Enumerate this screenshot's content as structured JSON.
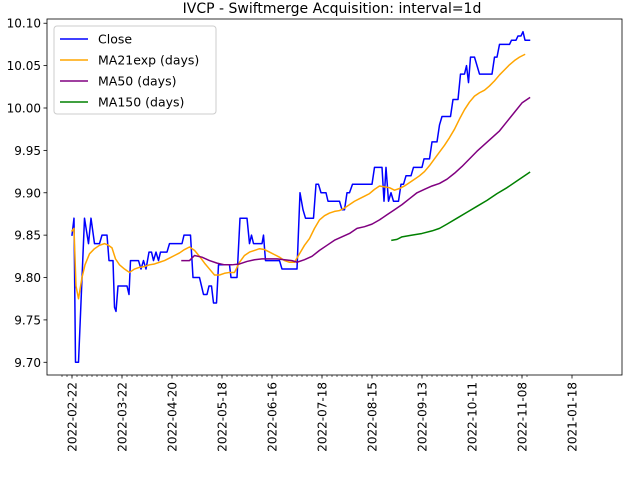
{
  "chart_data": {
    "type": "line",
    "title": "IVCP - Swiftmerge Acquisition: interval=1d",
    "xlabel": "",
    "ylabel": "",
    "ylim": [
      9.685,
      10.105
    ],
    "xlim": [
      -3,
      112
    ],
    "grid": false,
    "legend_position": "top-left",
    "y_ticks": [
      9.7,
      9.75,
      9.8,
      9.85,
      9.9,
      9.95,
      10.0,
      10.05,
      10.1
    ],
    "y_tick_labels": [
      "9.70",
      "9.75",
      "9.80",
      "9.85",
      "9.90",
      "9.95",
      "10.00",
      "10.05",
      "10.10"
    ],
    "x_ticks": [
      {
        "label": "2022-02-22",
        "index": 2
      },
      {
        "label": "2022-03-22",
        "index": 12
      },
      {
        "label": "2022-04-20",
        "index": 22
      },
      {
        "label": "2022-05-18",
        "index": 32
      },
      {
        "label": "2022-06-16",
        "index": 42
      },
      {
        "label": "2022-07-18",
        "index": 52
      },
      {
        "label": "2022-08-15",
        "index": 62
      },
      {
        "label": "2022-09-13",
        "index": 72
      },
      {
        "label": "2022-10-11",
        "index": 82
      },
      {
        "label": "2022-11-08",
        "index": 92
      },
      {
        "label": "2021-01-18",
        "index": 102
      }
    ],
    "series": [
      {
        "name": "Close",
        "color": "#0000ff",
        "points": [
          [
            2,
            9.85
          ],
          [
            2.4,
            9.87
          ],
          [
            2.7,
            9.7
          ],
          [
            3.3,
            9.7
          ],
          [
            4.5,
            9.87
          ],
          [
            5.3,
            9.84
          ],
          [
            5.8,
            9.87
          ],
          [
            6.5,
            9.84
          ],
          [
            7.5,
            9.84
          ],
          [
            8,
            9.85
          ],
          [
            9,
            9.85
          ],
          [
            9.4,
            9.82
          ],
          [
            10.2,
            9.82
          ],
          [
            10.5,
            9.765
          ],
          [
            10.8,
            9.76
          ],
          [
            11.2,
            9.79
          ],
          [
            13,
            9.79
          ],
          [
            13.4,
            9.78
          ],
          [
            13.7,
            9.82
          ],
          [
            15.3,
            9.82
          ],
          [
            15.8,
            9.81
          ],
          [
            16.3,
            9.82
          ],
          [
            16.8,
            9.81
          ],
          [
            17.4,
            9.83
          ],
          [
            17.9,
            9.83
          ],
          [
            18.3,
            9.82
          ],
          [
            18.8,
            9.83
          ],
          [
            19.3,
            9.82
          ],
          [
            19.7,
            9.83
          ],
          [
            21,
            9.83
          ],
          [
            21.5,
            9.84
          ],
          [
            24,
            9.84
          ],
          [
            24.4,
            9.85
          ],
          [
            25.7,
            9.85
          ],
          [
            26.2,
            9.8
          ],
          [
            27.5,
            9.8
          ],
          [
            28.3,
            9.78
          ],
          [
            29,
            9.78
          ],
          [
            29.4,
            9.79
          ],
          [
            29.9,
            9.79
          ],
          [
            30.3,
            9.77
          ],
          [
            30.9,
            9.77
          ],
          [
            31.3,
            9.815
          ],
          [
            33.5,
            9.815
          ],
          [
            33.8,
            9.8
          ],
          [
            35,
            9.8
          ],
          [
            35.6,
            9.87
          ],
          [
            37,
            9.87
          ],
          [
            37.5,
            9.84
          ],
          [
            37.9,
            9.85
          ],
          [
            38.3,
            9.84
          ],
          [
            40,
            9.84
          ],
          [
            40.3,
            9.85
          ],
          [
            40.7,
            9.82
          ],
          [
            43.5,
            9.82
          ],
          [
            44,
            9.81
          ],
          [
            47,
            9.81
          ],
          [
            47.6,
            9.9
          ],
          [
            48.2,
            9.88
          ],
          [
            48.7,
            9.87
          ],
          [
            50.3,
            9.87
          ],
          [
            50.8,
            9.91
          ],
          [
            51.3,
            9.91
          ],
          [
            51.8,
            9.9
          ],
          [
            52.8,
            9.9
          ],
          [
            53.2,
            9.89
          ],
          [
            55.5,
            9.89
          ],
          [
            56,
            9.88
          ],
          [
            56.5,
            9.88
          ],
          [
            57,
            9.9
          ],
          [
            57.5,
            9.9
          ],
          [
            58.1,
            9.91
          ],
          [
            62,
            9.91
          ],
          [
            62.5,
            9.93
          ],
          [
            64,
            9.93
          ],
          [
            64.4,
            9.89
          ],
          [
            64.8,
            9.93
          ],
          [
            65.3,
            9.89
          ],
          [
            65.8,
            9.9
          ],
          [
            66.3,
            9.89
          ],
          [
            67.3,
            9.89
          ],
          [
            67.8,
            9.91
          ],
          [
            68.3,
            9.91
          ],
          [
            68.8,
            9.92
          ],
          [
            69.8,
            9.92
          ],
          [
            70.3,
            9.93
          ],
          [
            72,
            9.93
          ],
          [
            72.4,
            9.94
          ],
          [
            73.5,
            9.94
          ],
          [
            74,
            9.96
          ],
          [
            75,
            9.96
          ],
          [
            75.5,
            9.98
          ],
          [
            76,
            9.99
          ],
          [
            77.7,
            9.99
          ],
          [
            78.2,
            10.01
          ],
          [
            79.2,
            10.01
          ],
          [
            79.7,
            10.04
          ],
          [
            80.5,
            10.04
          ],
          [
            80.9,
            10.05
          ],
          [
            81.3,
            10.03
          ],
          [
            81.7,
            10.06
          ],
          [
            82.5,
            10.06
          ],
          [
            83.5,
            10.04
          ],
          [
            86,
            10.04
          ],
          [
            86.5,
            10.06
          ],
          [
            87,
            10.06
          ],
          [
            87.5,
            10.075
          ],
          [
            89.5,
            10.075
          ],
          [
            89.9,
            10.08
          ],
          [
            90.8,
            10.08
          ],
          [
            91.2,
            10.085
          ],
          [
            91.8,
            10.085
          ],
          [
            92.2,
            10.09
          ],
          [
            92.6,
            10.08
          ],
          [
            93.5,
            10.08
          ]
        ]
      },
      {
        "name": "MA21exp (days)",
        "color": "#ffa500",
        "points": [
          [
            2,
            9.855
          ],
          [
            2.4,
            9.858
          ],
          [
            2.8,
            9.79
          ],
          [
            3.3,
            9.775
          ],
          [
            4,
            9.8
          ],
          [
            4.6,
            9.815
          ],
          [
            5.5,
            9.828
          ],
          [
            6.5,
            9.834
          ],
          [
            7.5,
            9.838
          ],
          [
            8.5,
            9.84
          ],
          [
            9.3,
            9.838
          ],
          [
            10,
            9.835
          ],
          [
            10.7,
            9.822
          ],
          [
            11.5,
            9.815
          ],
          [
            12.5,
            9.81
          ],
          [
            13.5,
            9.806
          ],
          [
            14.5,
            9.81
          ],
          [
            15.5,
            9.812
          ],
          [
            16.5,
            9.813
          ],
          [
            17.5,
            9.815
          ],
          [
            18.5,
            9.816
          ],
          [
            19.5,
            9.818
          ],
          [
            20.5,
            9.82
          ],
          [
            21.5,
            9.823
          ],
          [
            22.5,
            9.826
          ],
          [
            23.5,
            9.829
          ],
          [
            24.5,
            9.833
          ],
          [
            25.5,
            9.836
          ],
          [
            26.5,
            9.832
          ],
          [
            27.5,
            9.825
          ],
          [
            28.5,
            9.817
          ],
          [
            29.5,
            9.81
          ],
          [
            30.5,
            9.803
          ],
          [
            31.5,
            9.803
          ],
          [
            32.5,
            9.805
          ],
          [
            33.5,
            9.806
          ],
          [
            34.5,
            9.806
          ],
          [
            35.5,
            9.818
          ],
          [
            36.5,
            9.826
          ],
          [
            37.5,
            9.83
          ],
          [
            38.5,
            9.832
          ],
          [
            39.5,
            9.834
          ],
          [
            40.5,
            9.833
          ],
          [
            41.5,
            9.83
          ],
          [
            42.5,
            9.827
          ],
          [
            43.5,
            9.824
          ],
          [
            44.5,
            9.82
          ],
          [
            45.5,
            9.818
          ],
          [
            46.5,
            9.818
          ],
          [
            47.5,
            9.828
          ],
          [
            48.5,
            9.838
          ],
          [
            49.5,
            9.846
          ],
          [
            50.5,
            9.858
          ],
          [
            51.5,
            9.868
          ],
          [
            52.5,
            9.873
          ],
          [
            53.5,
            9.876
          ],
          [
            54.5,
            9.878
          ],
          [
            55.5,
            9.879
          ],
          [
            56.5,
            9.882
          ],
          [
            57.5,
            9.886
          ],
          [
            58.5,
            9.89
          ],
          [
            59.5,
            9.893
          ],
          [
            60.5,
            9.896
          ],
          [
            61.5,
            9.899
          ],
          [
            62.5,
            9.904
          ],
          [
            63.5,
            9.908
          ],
          [
            64.5,
            9.907
          ],
          [
            65.5,
            9.906
          ],
          [
            66.5,
            9.903
          ],
          [
            67.5,
            9.905
          ],
          [
            68.5,
            9.908
          ],
          [
            69.5,
            9.912
          ],
          [
            70.5,
            9.916
          ],
          [
            71.5,
            9.92
          ],
          [
            72.5,
            9.925
          ],
          [
            73.5,
            9.932
          ],
          [
            74.5,
            9.94
          ],
          [
            75.5,
            9.948
          ],
          [
            76.5,
            9.956
          ],
          [
            77.5,
            9.965
          ],
          [
            78.5,
            9.975
          ],
          [
            79.5,
            9.987
          ],
          [
            80.5,
            9.998
          ],
          [
            81.5,
            10.007
          ],
          [
            82.5,
            10.014
          ],
          [
            83.5,
            10.018
          ],
          [
            84.5,
            10.021
          ],
          [
            85.5,
            10.026
          ],
          [
            86.5,
            10.032
          ],
          [
            87.5,
            10.039
          ],
          [
            88.5,
            10.045
          ],
          [
            89.5,
            10.051
          ],
          [
            90.5,
            10.056
          ],
          [
            91.5,
            10.06
          ],
          [
            92.5,
            10.063
          ]
        ]
      },
      {
        "name": "MA50 (days)",
        "color": "#800080",
        "points": [
          [
            24,
            9.82
          ],
          [
            25.5,
            9.82
          ],
          [
            26.5,
            9.826
          ],
          [
            28,
            9.824
          ],
          [
            29.5,
            9.82
          ],
          [
            31,
            9.817
          ],
          [
            32.5,
            9.815
          ],
          [
            34,
            9.815
          ],
          [
            35.5,
            9.816
          ],
          [
            37,
            9.819
          ],
          [
            38.5,
            9.821
          ],
          [
            40,
            9.822
          ],
          [
            41.5,
            9.822
          ],
          [
            43,
            9.822
          ],
          [
            44.5,
            9.821
          ],
          [
            46,
            9.82
          ],
          [
            47,
            9.818
          ],
          [
            48.5,
            9.821
          ],
          [
            50,
            9.825
          ],
          [
            51.5,
            9.832
          ],
          [
            53,
            9.838
          ],
          [
            54.5,
            9.844
          ],
          [
            56,
            9.848
          ],
          [
            57.5,
            9.852
          ],
          [
            59,
            9.858
          ],
          [
            60.5,
            9.86
          ],
          [
            62,
            9.863
          ],
          [
            63.5,
            9.868
          ],
          [
            65,
            9.874
          ],
          [
            66.5,
            9.88
          ],
          [
            68,
            9.886
          ],
          [
            69.5,
            9.893
          ],
          [
            71,
            9.9
          ],
          [
            72.5,
            9.904
          ],
          [
            74,
            9.908
          ],
          [
            75.5,
            9.911
          ],
          [
            77,
            9.916
          ],
          [
            78.5,
            9.923
          ],
          [
            80,
            9.931
          ],
          [
            81.5,
            9.94
          ],
          [
            83,
            9.949
          ],
          [
            84.5,
            9.957
          ],
          [
            86,
            9.965
          ],
          [
            87.5,
            9.973
          ],
          [
            89,
            9.984
          ],
          [
            90.5,
            9.995
          ],
          [
            92,
            10.006
          ],
          [
            93.5,
            10.012
          ]
        ]
      },
      {
        "name": "MA150 (days)",
        "color": "#008000",
        "points": [
          [
            66,
            9.844
          ],
          [
            67,
            9.845
          ],
          [
            68,
            9.848
          ],
          [
            70,
            9.85
          ],
          [
            72,
            9.852
          ],
          [
            74,
            9.855
          ],
          [
            75.5,
            9.858
          ],
          [
            77,
            9.863
          ],
          [
            79,
            9.87
          ],
          [
            81,
            9.877
          ],
          [
            83,
            9.884
          ],
          [
            85,
            9.891
          ],
          [
            87,
            9.899
          ],
          [
            89,
            9.906
          ],
          [
            91,
            9.914
          ],
          [
            93.5,
            9.924
          ]
        ]
      }
    ]
  }
}
